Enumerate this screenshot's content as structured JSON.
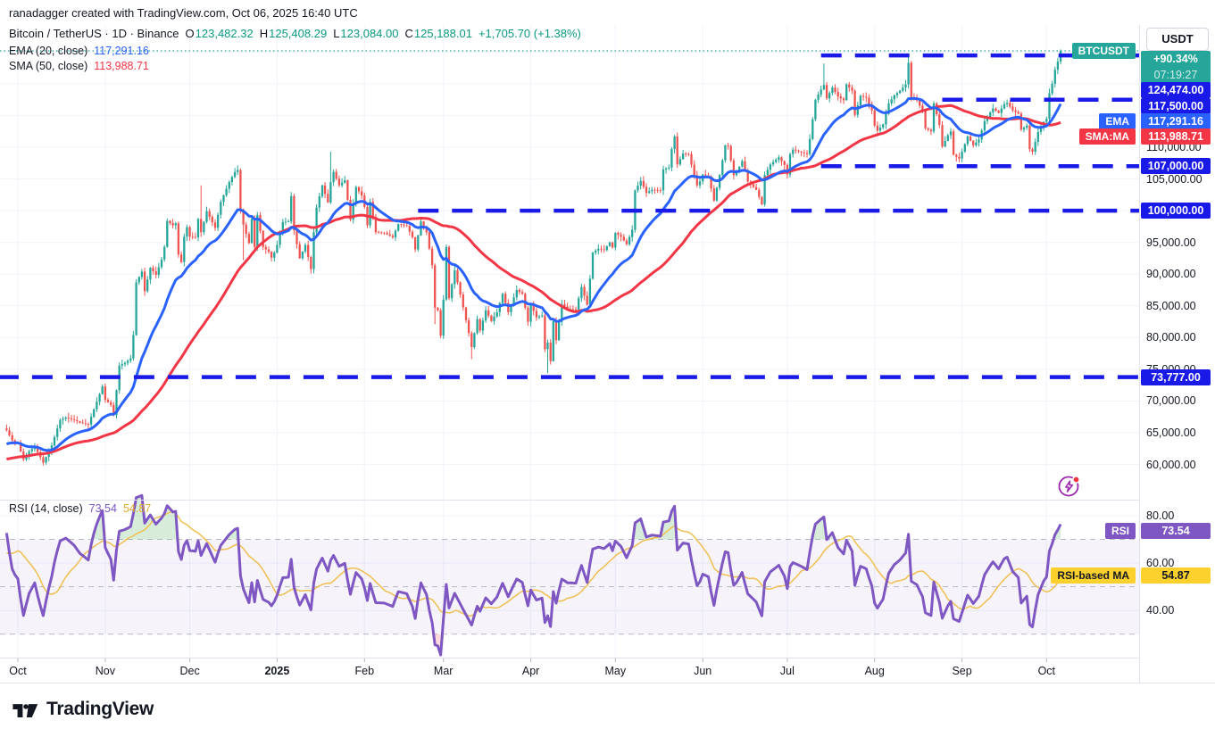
{
  "attribution": "ranadagger created with TradingView.com, Oct 06, 2025 16:40 UTC",
  "header": {
    "title": "Bitcoin / TetherUS · 1D · Binance",
    "o_label": "O",
    "o": "123,482.32",
    "h_label": "H",
    "h": "125,408.29",
    "l_label": "L",
    "l": "123,084.00",
    "c_label": "C",
    "c": "125,188.01",
    "change": "+1,705.70 (+1.38%)"
  },
  "legend": {
    "ema_name": "EMA (20, close)",
    "ema_value": "117,291.16",
    "sma_name": "SMA (50, close)",
    "sma_value": "113,988.71",
    "rsi_name": "RSI (14, close)",
    "rsi_value": "73.54",
    "rsi_ma_value": "54.87"
  },
  "axis": {
    "currency": "USDT",
    "change_pct": "+90.34%",
    "countdown": "07:19:27",
    "ema_value": "117,291.16",
    "sma_value": "113,988.71",
    "rsi_value": "73.54",
    "rsi_ma_value": "54.87"
  },
  "badges": {
    "symbol": "BTCUSDT",
    "ema": "EMA",
    "sma": "SMA:MA",
    "rsi": "RSI",
    "rsi_ma": "RSI-based MA"
  },
  "logo": {
    "text": "TradingView"
  },
  "colors": {
    "up": "#26a69a",
    "down": "#ef5350",
    "up_text": "#089981",
    "ema": "#2962ff",
    "sma": "#f23645",
    "level_blue": "#1a1ae8",
    "rsi": "#7e57c2",
    "rsi_ma": "#efc050",
    "rsi_ma_badge": "#fcd12d",
    "grid": "#f0f3fa",
    "border": "#e0e3eb",
    "text": "#131722",
    "muted": "#787b86",
    "current_teal": "#26a69a",
    "boost": "#9c27b0",
    "dot_red": "#f23645",
    "overbought_fill": "rgba(76,175,80,0.22)",
    "oversold_fill": "rgba(242,54,69,0.18)"
  },
  "chart_data": {
    "type": "candlestick",
    "symbol": "BTCUSDT",
    "interval": "1D",
    "ohlc_today": {
      "open": 123482.32,
      "high": 125408.29,
      "low": 123084.0,
      "close": 125188.01
    },
    "current_price": {
      "value": 125188.01,
      "pct": "+90.34%",
      "countdown": "07:19:27"
    },
    "price_axis_labels": [
      110000,
      105000,
      95000,
      90000,
      85000,
      80000,
      75000,
      70000,
      65000,
      60000
    ],
    "levels": [
      {
        "value": 124474,
        "label": "124,474.00",
        "start_day": 285
      },
      {
        "value": 117500,
        "label": "117,500.00",
        "start_day": 328
      },
      {
        "value": 107000,
        "label": "107,000.00",
        "start_day": 285
      },
      {
        "value": 100000,
        "label": "100,000.00",
        "start_day": 142
      },
      {
        "value": 73777,
        "label": "73,777.00",
        "start_day": -7
      }
    ],
    "x_axis": {
      "labels": [
        {
          "text": "Oct",
          "day": 0
        },
        {
          "text": "Nov",
          "day": 31
        },
        {
          "text": "Dec",
          "day": 61
        },
        {
          "text": "2025",
          "day": 92,
          "bold": true
        },
        {
          "text": "Feb",
          "day": 123
        },
        {
          "text": "Mar",
          "day": 151
        },
        {
          "text": "Apr",
          "day": 182
        },
        {
          "text": "May",
          "day": 212
        },
        {
          "text": "Jun",
          "day": 243
        },
        {
          "text": "Jul",
          "day": 273
        },
        {
          "text": "Aug",
          "day": 304
        },
        {
          "text": "Sep",
          "day": 335
        },
        {
          "text": "Oct",
          "day": 365
        }
      ]
    },
    "indicators": {
      "ema": {
        "period": 20,
        "last": 117291.16
      },
      "sma": {
        "period": 50,
        "last": 113988.71
      },
      "rsi": {
        "period": 14,
        "last": 73.54,
        "ma_period": 14,
        "ma_last": 54.87,
        "bands": [
          70,
          50,
          30
        ],
        "axis_labels": [
          80,
          60,
          40
        ]
      }
    },
    "series": {
      "units": "close price in thousands of USDT, day 0 = Oct 1 2024, last day 370 = Oct 6 2025",
      "history_anchors_k": [
        [
          -62,
          54.8
        ],
        [
          -58,
          58.5
        ],
        [
          -54,
          61.0
        ],
        [
          -50,
          59.3
        ],
        [
          -46,
          58.2
        ],
        [
          -42,
          59.1
        ],
        [
          -38,
          57.4
        ],
        [
          -34,
          57.6
        ],
        [
          -30,
          59.8
        ],
        [
          -26,
          63.2
        ],
        [
          -22,
          63.0
        ],
        [
          -18,
          62.8
        ],
        [
          -14,
          60.0
        ],
        [
          -10,
          63.6
        ],
        [
          -7,
          65.2
        ],
        [
          -5,
          65.7
        ]
      ],
      "close_anchors_k": [
        [
          -4,
          65.4
        ],
        [
          -2,
          63.8
        ],
        [
          -1,
          63.5
        ],
        [
          0,
          63.3
        ],
        [
          2,
          60.8
        ],
        [
          4,
          62.1
        ],
        [
          6,
          62.8
        ],
        [
          9,
          60.3
        ],
        [
          12,
          63.0
        ],
        [
          15,
          67.0
        ],
        [
          17,
          67.4
        ],
        [
          20,
          67.0
        ],
        [
          22,
          66.6
        ],
        [
          25,
          66.3
        ],
        [
          28,
          69.9
        ],
        [
          30,
          72.3
        ],
        [
          31,
          70.2
        ],
        [
          33,
          69.4
        ],
        [
          34,
          67.8
        ],
        [
          36,
          75.6
        ],
        [
          38,
          76.0
        ],
        [
          40,
          76.7
        ],
        [
          41,
          80.4
        ],
        [
          42,
          88.7
        ],
        [
          44,
          90.4
        ],
        [
          45,
          87.3
        ],
        [
          47,
          91.0
        ],
        [
          49,
          89.9
        ],
        [
          51,
          92.3
        ],
        [
          52,
          94.3
        ],
        [
          53,
          98.4
        ],
        [
          55,
          97.7
        ],
        [
          56,
          98.0
        ],
        [
          57,
          93.1
        ],
        [
          58,
          91.9
        ],
        [
          59,
          95.9
        ],
        [
          60,
          97.4
        ],
        [
          61,
          95.9
        ],
        [
          63,
          95.8
        ],
        [
          64,
          98.7
        ],
        [
          65,
          96.6
        ],
        [
          67,
          99.9
        ],
        [
          70,
          97.3
        ],
        [
          72,
          101.4
        ],
        [
          75,
          104.5
        ],
        [
          77,
          106.1
        ],
        [
          78,
          106.4
        ],
        [
          79,
          100.2
        ],
        [
          80,
          97.8
        ],
        [
          82,
          94.9
        ],
        [
          83,
          98.7
        ],
        [
          84,
          94.3
        ],
        [
          85,
          99.3
        ],
        [
          87,
          94.3
        ],
        [
          89,
          93.5
        ],
        [
          90,
          92.6
        ],
        [
          91,
          93.4
        ],
        [
          92,
          94.6
        ],
        [
          94,
          98.2
        ],
        [
          96,
          98.3
        ],
        [
          97,
          102.3
        ],
        [
          98,
          96.9
        ],
        [
          100,
          92.5
        ],
        [
          102,
          94.6
        ],
        [
          104,
          90.8
        ],
        [
          105,
          96.6
        ],
        [
          106,
          100.5
        ],
        [
          108,
          104.0
        ],
        [
          110,
          101.3
        ],
        [
          111,
          104.5
        ],
        [
          112,
          106.1
        ],
        [
          114,
          104.0
        ],
        [
          116,
          104.8
        ],
        [
          118,
          98.6
        ],
        [
          120,
          103.7
        ],
        [
          122,
          102.4
        ],
        [
          123,
          100.6
        ],
        [
          124,
          97.7
        ],
        [
          125,
          101.4
        ],
        [
          127,
          96.6
        ],
        [
          130,
          96.5
        ],
        [
          133,
          95.8
        ],
        [
          135,
          97.9
        ],
        [
          138,
          97.6
        ],
        [
          140,
          95.8
        ],
        [
          141,
          93.9
        ],
        [
          143,
          98.3
        ],
        [
          145,
          96.6
        ],
        [
          147,
          91.4
        ],
        [
          148,
          84.7
        ],
        [
          149,
          84.3
        ],
        [
          150,
          80.3
        ],
        [
          151,
          86.0
        ],
        [
          152,
          94.3
        ],
        [
          153,
          86.2
        ],
        [
          155,
          90.6
        ],
        [
          157,
          86.8
        ],
        [
          160,
          80.7
        ],
        [
          161,
          78.5
        ],
        [
          163,
          82.9
        ],
        [
          164,
          81.1
        ],
        [
          166,
          84.3
        ],
        [
          168,
          82.6
        ],
        [
          170,
          84.0
        ],
        [
          172,
          86.9
        ],
        [
          174,
          84.0
        ],
        [
          177,
          87.5
        ],
        [
          179,
          86.9
        ],
        [
          181,
          82.5
        ],
        [
          182,
          85.2
        ],
        [
          184,
          83.2
        ],
        [
          186,
          83.5
        ],
        [
          187,
          78.2
        ],
        [
          188,
          79.2
        ],
        [
          189,
          76.3
        ],
        [
          190,
          82.6
        ],
        [
          191,
          79.6
        ],
        [
          193,
          85.3
        ],
        [
          195,
          84.5
        ],
        [
          198,
          84.4
        ],
        [
          200,
          88.0
        ],
        [
          202,
          85.2
        ],
        [
          204,
          93.4
        ],
        [
          206,
          94.0
        ],
        [
          208,
          93.8
        ],
        [
          210,
          95.0
        ],
        [
          211,
          94.2
        ],
        [
          212,
          96.5
        ],
        [
          214,
          95.9
        ],
        [
          216,
          94.7
        ],
        [
          218,
          97.0
        ],
        [
          219,
          103.2
        ],
        [
          221,
          104.7
        ],
        [
          223,
          102.8
        ],
        [
          225,
          103.3
        ],
        [
          228,
          103.2
        ],
        [
          229,
          106.5
        ],
        [
          231,
          106.8
        ],
        [
          232,
          109.7
        ],
        [
          233,
          111.7
        ],
        [
          234,
          107.3
        ],
        [
          236,
          109.0
        ],
        [
          238,
          108.9
        ],
        [
          240,
          105.6
        ],
        [
          241,
          104.0
        ],
        [
          242,
          104.6
        ],
        [
          243,
          105.7
        ],
        [
          245,
          105.4
        ],
        [
          247,
          101.6
        ],
        [
          249,
          105.6
        ],
        [
          251,
          110.3
        ],
        [
          252,
          110.2
        ],
        [
          254,
          105.6
        ],
        [
          255,
          106.1
        ],
        [
          257,
          107.8
        ],
        [
          259,
          104.6
        ],
        [
          262,
          103.3
        ],
        [
          264,
          101.0
        ],
        [
          265,
          105.6
        ],
        [
          267,
          107.3
        ],
        [
          270,
          108.4
        ],
        [
          272,
          107.2
        ],
        [
          273,
          105.7
        ],
        [
          274,
          108.9
        ],
        [
          275,
          109.6
        ],
        [
          278,
          109.2
        ],
        [
          280,
          108.9
        ],
        [
          281,
          111.3
        ],
        [
          283,
          117.5
        ],
        [
          285,
          119.1
        ],
        [
          286,
          119.8
        ],
        [
          287,
          117.7
        ],
        [
          289,
          119.4
        ],
        [
          291,
          118.0
        ],
        [
          293,
          117.4
        ],
        [
          294,
          119.9
        ],
        [
          296,
          118.9
        ],
        [
          297,
          115.1
        ],
        [
          299,
          118.1
        ],
        [
          301,
          117.8
        ],
        [
          303,
          115.8
        ],
        [
          304,
          113.4
        ],
        [
          305,
          112.6
        ],
        [
          307,
          113.6
        ],
        [
          309,
          116.9
        ],
        [
          311,
          118.2
        ],
        [
          313,
          118.9
        ],
        [
          315,
          119.9
        ],
        [
          316,
          123.3
        ],
        [
          317,
          117.9
        ],
        [
          319,
          117.4
        ],
        [
          321,
          115.7
        ],
        [
          322,
          113.0
        ],
        [
          324,
          112.5
        ],
        [
          325,
          116.9
        ],
        [
          327,
          113.5
        ],
        [
          328,
          110.1
        ],
        [
          330,
          111.9
        ],
        [
          331,
          112.5
        ],
        [
          332,
          108.8
        ],
        [
          334,
          108.2
        ],
        [
          335,
          109.3
        ],
        [
          337,
          111.7
        ],
        [
          339,
          110.3
        ],
        [
          341,
          111.2
        ],
        [
          343,
          114.1
        ],
        [
          345,
          115.5
        ],
        [
          346,
          116.1
        ],
        [
          348,
          115.4
        ],
        [
          350,
          116.8
        ],
        [
          351,
          117.0
        ],
        [
          353,
          115.8
        ],
        [
          355,
          115.3
        ],
        [
          356,
          112.8
        ],
        [
          358,
          113.4
        ],
        [
          359,
          109.7
        ],
        [
          360,
          109.3
        ],
        [
          362,
          112.4
        ],
        [
          364,
          114.0
        ],
        [
          365,
          114.5
        ],
        [
          366,
          118.5
        ],
        [
          367,
          120.0
        ],
        [
          368,
          122.2
        ],
        [
          369,
          123.48
        ],
        [
          370,
          125.19
        ]
      ],
      "wick_overrides": [
        [
          65,
          104.0,
          95.9
        ],
        [
          80,
          null,
          92.2
        ],
        [
          111,
          109.3,
          null
        ],
        [
          148,
          null,
          82.1
        ],
        [
          161,
          null,
          76.6
        ],
        [
          188,
          null,
          74.4
        ],
        [
          233,
          111.96,
          null
        ],
        [
          286,
          123.2,
          null
        ],
        [
          316,
          124.5,
          null
        ],
        [
          370,
          125.41,
          123.08
        ]
      ]
    }
  }
}
